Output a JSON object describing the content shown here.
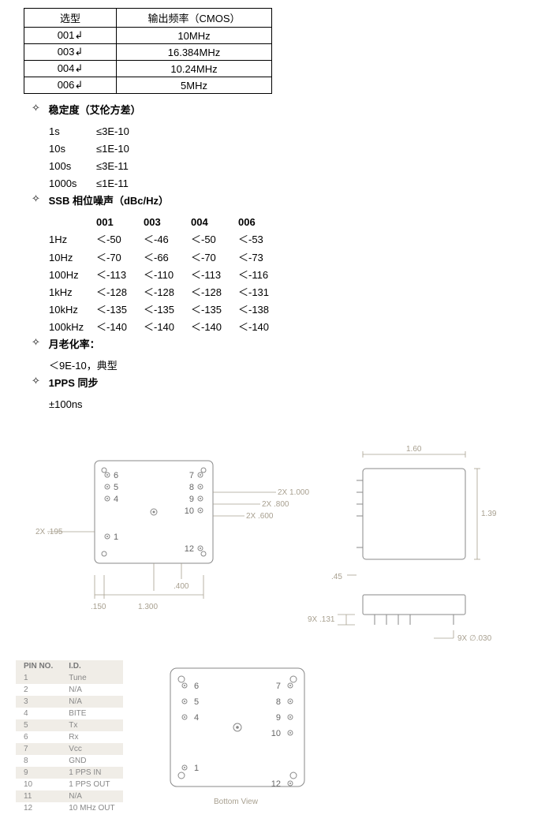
{
  "freq_table": {
    "headers": [
      "选型",
      "输出频率（CMOS）"
    ],
    "rows": [
      [
        "001↲",
        "10MHz"
      ],
      [
        "003↲",
        "16.384MHz"
      ],
      [
        "004↲",
        "10.24MHz"
      ],
      [
        "006↲",
        "5MHz"
      ]
    ]
  },
  "stability": {
    "title": "稳定度（艾伦方差）",
    "rows": [
      {
        "t": "1s",
        "v": "≤3E-10"
      },
      {
        "t": "10s",
        "v": "≤1E-10"
      },
      {
        "t": "100s",
        "v": "≤3E-11"
      },
      {
        "t": "1000s",
        "v": "≤1E-11"
      }
    ]
  },
  "ssb": {
    "title": "SSB 相位噪声（dBc/Hz）",
    "cols": [
      "001",
      "003",
      "004",
      "006"
    ],
    "rows": [
      {
        "f": "1Hz",
        "v": [
          "＜-50",
          "＜-46",
          "＜-50",
          "＜-53"
        ]
      },
      {
        "f": "10Hz",
        "v": [
          "＜-70",
          "＜-66",
          "＜-70",
          "＜-73"
        ]
      },
      {
        "f": "100Hz",
        "v": [
          "＜-113",
          "＜-110",
          "＜-113",
          "＜-116"
        ]
      },
      {
        "f": "1kHz",
        "v": [
          "＜-128",
          "＜-128",
          "＜-128",
          "＜-131"
        ]
      },
      {
        "f": "10kHz",
        "v": [
          "＜-135",
          "＜-135",
          "＜-135",
          "＜-138"
        ]
      },
      {
        "f": "100kHz",
        "v": [
          "＜-140",
          "＜-140",
          "＜-140",
          "＜-140"
        ]
      }
    ]
  },
  "aging": {
    "title": "月老化率：",
    "value": "＜9E-10，典型"
  },
  "pps": {
    "title": "1PPS 同步",
    "value": "±100ns"
  },
  "dims": {
    "top_w": "1.60",
    "top_h": "1.39",
    "left_2x195": "2X .195",
    "left_150": ".150",
    "left_1300": "1.300",
    "c_400": ".400",
    "c_2x600": "2X .600",
    "c_2x800": "2X .800",
    "c_2x1000": "2X 1.000",
    "side_45": ".45",
    "pin_9x131": "9X .131",
    "pin_9x030": "9X ∅.030",
    "bottom_label": "Bottom View"
  },
  "pins_left": [
    "6",
    "5",
    "4",
    "1"
  ],
  "pins_right": [
    "7",
    "8",
    "9",
    "10",
    "12"
  ],
  "bottom_pins_left": [
    "6",
    "5",
    "4",
    "1"
  ],
  "bottom_pins_right": [
    "7",
    "8",
    "9",
    "10",
    "12"
  ],
  "pin_table": {
    "headers": [
      "PIN NO.",
      "I.D."
    ],
    "rows": [
      [
        "1",
        "Tune"
      ],
      [
        "2",
        "N/A"
      ],
      [
        "3",
        "N/A"
      ],
      [
        "4",
        "BITE"
      ],
      [
        "5",
        "Tx"
      ],
      [
        "6",
        "Rx"
      ],
      [
        "7",
        "Vcc"
      ],
      [
        "8",
        "GND"
      ],
      [
        "9",
        "1 PPS IN"
      ],
      [
        "10",
        "1 PPS OUT"
      ],
      [
        "11",
        "N/A"
      ],
      [
        "12",
        "10 MHz OUT"
      ]
    ]
  },
  "colors": {
    "dim": "#a8a090",
    "pkg": "#888888",
    "pin_row_bg": "#f0ede7"
  }
}
